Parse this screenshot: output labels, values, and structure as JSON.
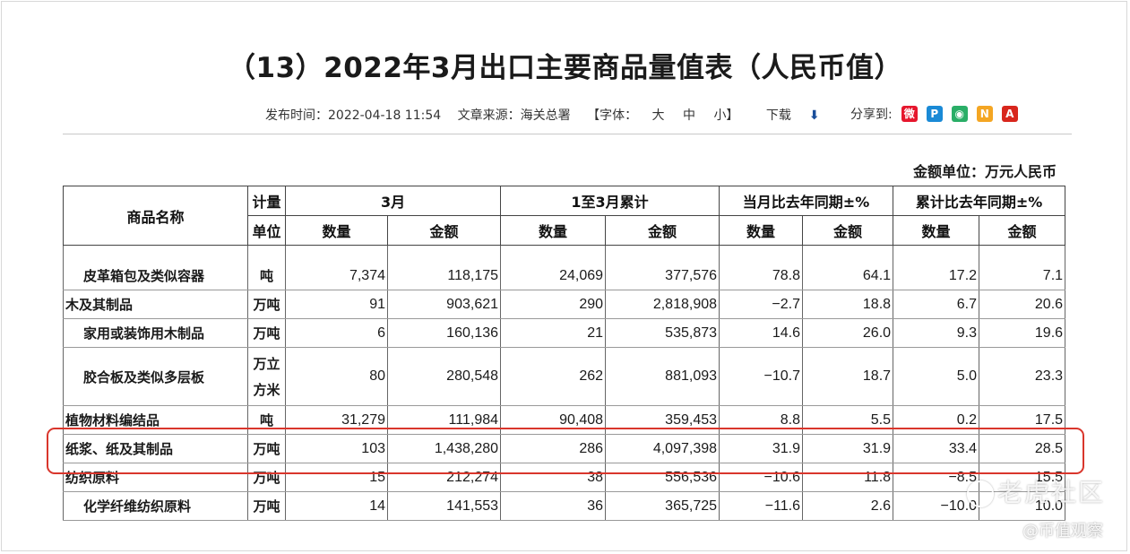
{
  "title": "（13）2022年3月出口主要商品量值表（人民币值）",
  "meta": {
    "publish_label": "发布时间：2022-04-18 11:54",
    "source_label": "文章来源：海关总署",
    "font_size_label": "【字体：",
    "font_large": "大",
    "font_medium": "中",
    "font_small": "小】",
    "download_label": "下载",
    "share_label": "分享到:"
  },
  "share_icons": [
    {
      "icon": "weibo-icon",
      "color": "#e6162d"
    },
    {
      "icon": "qzone-icon",
      "color": "#1a8ad6"
    },
    {
      "icon": "wechat-icon",
      "color": "#2aae67"
    },
    {
      "icon": "netease-icon",
      "color": "#f4a623"
    },
    {
      "icon": "pdf-icon",
      "color": "#d8261d"
    }
  ],
  "unit_note": "金额单位：万元人民币",
  "table": {
    "headers": {
      "name": "商品名称",
      "unit_top": "计量",
      "unit_bottom": "单位",
      "march": "3月",
      "ytd": "1至3月累计",
      "yoy_month": "当月比去年同期±%",
      "yoy_ytd": "累计比去年同期±%",
      "qty": "数量",
      "amt": "金额"
    },
    "rows": [
      {
        "name": "皮革箱包及类似容器",
        "unit": "吨",
        "m_qty": "7,374",
        "m_amt": "118,175",
        "y_qty": "24,069",
        "y_amt": "377,576",
        "mm_qty": "78.8",
        "mm_amt": "64.1",
        "yy_qty": "17.2",
        "yy_amt": "7.1"
      },
      {
        "name": "木及其制品",
        "unit": "万吨",
        "m_qty": "91",
        "m_amt": "903,621",
        "y_qty": "290",
        "y_amt": "2,818,908",
        "mm_qty": "−2.7",
        "mm_amt": "18.8",
        "yy_qty": "6.7",
        "yy_amt": "20.6"
      },
      {
        "name": "家用或装饰用木制品",
        "unit": "万吨",
        "m_qty": "6",
        "m_amt": "160,136",
        "y_qty": "21",
        "y_amt": "535,873",
        "mm_qty": "14.6",
        "mm_amt": "26.0",
        "yy_qty": "9.3",
        "yy_amt": "19.6"
      },
      {
        "name": "胶合板及类似多层板",
        "unit_top": "万立",
        "unit_bottom": "方米",
        "m_qty": "80",
        "m_amt": "280,548",
        "y_qty": "262",
        "y_amt": "881,093",
        "mm_qty": "−10.7",
        "mm_amt": "18.7",
        "yy_qty": "5.0",
        "yy_amt": "23.3"
      },
      {
        "name": "植物材料编结品",
        "unit": "吨",
        "m_qty": "31,279",
        "m_amt": "111,984",
        "y_qty": "90,408",
        "y_amt": "359,453",
        "mm_qty": "8.8",
        "mm_amt": "5.5",
        "yy_qty": "0.2",
        "yy_amt": "17.5"
      },
      {
        "name": "纸浆、纸及其制品",
        "unit": "万吨",
        "m_qty": "103",
        "m_amt": "1,438,280",
        "y_qty": "286",
        "y_amt": "4,097,398",
        "mm_qty": "31.9",
        "mm_amt": "31.9",
        "yy_qty": "33.4",
        "yy_amt": "28.5"
      },
      {
        "name": "纺织原料",
        "unit": "万吨",
        "m_qty": "15",
        "m_amt": "212,274",
        "y_qty": "38",
        "y_amt": "556,536",
        "mm_qty": "−10.6",
        "mm_amt": "11.8",
        "yy_qty": "−8.5",
        "yy_amt": "15.5"
      },
      {
        "name": "化学纤维纺织原料",
        "unit": "万吨",
        "m_qty": "14",
        "m_amt": "141,553",
        "y_qty": "36",
        "y_amt": "365,725",
        "mm_qty": "−11.6",
        "mm_amt": "2.6",
        "yy_qty": "−10.0",
        "yy_amt": "10.0"
      }
    ]
  },
  "watermark": {
    "line1": "老虎社区",
    "line2": "@币值观察"
  },
  "colors": {
    "highlight": "#d9362c",
    "download_icon": "#1a4e9a"
  }
}
